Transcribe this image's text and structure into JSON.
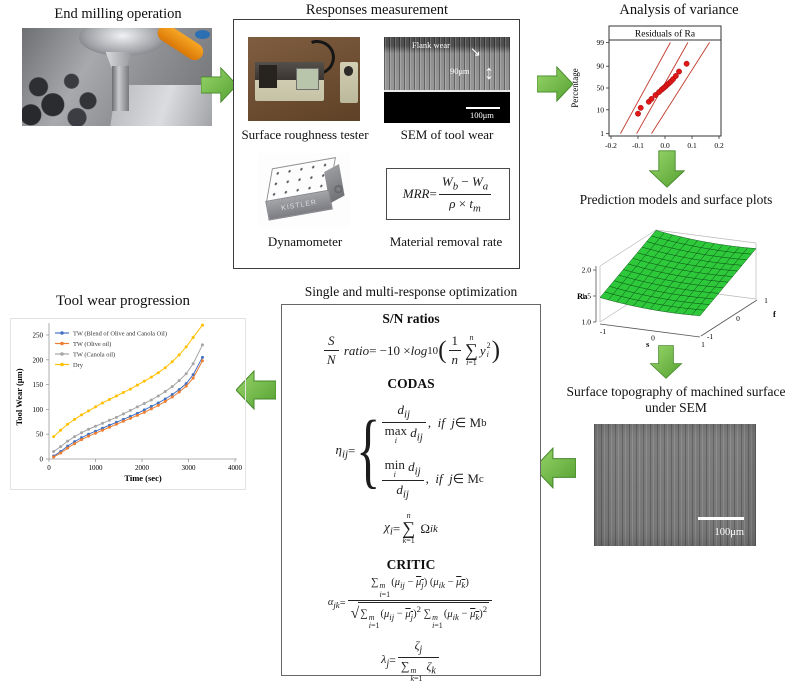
{
  "sections": {
    "end_milling": {
      "title": "End milling operation"
    },
    "responses": {
      "title": "Responses measurement",
      "tester_label": "Surface roughness tester",
      "sem_label": "SEM of tool wear",
      "dyna_label": "Dynamometer",
      "mrr_label": "Material removal rate",
      "dyna_device_text": "KISTLER",
      "sem_flank": "Flank wear",
      "sem_arrow": "↘",
      "sem_measure": "90μm",
      "sem_updown": "↕",
      "sem_scale": "100μm",
      "mrr_formula": "<i>MRR</i> = <span class='fr'><span class='n'><i>W<sub>b</sub></i> − <i>W<sub>a</sub></i></span><span class='d'><i>ρ</i> × <i>t<sub>m</sub></i></span></span>"
    },
    "anova": {
      "title": "Analysis of variance"
    },
    "prediction": {
      "title": "Prediction models and surface plots"
    },
    "topography": {
      "title_line1": "Surface topography of machined surface",
      "title_line2": "under SEM",
      "scale": "100μm"
    },
    "optimization": {
      "title": "Single and multi-response optimization",
      "sn_heading": "S/N ratios",
      "codas_heading": "CODAS",
      "critic_heading": "CRITIC",
      "formulas": {
        "sn": "<span class='fr'><span class='n'><i>S</i></span><span class='d'><i>N</i></span></span><i>&nbsp;ratio</i> = −10 × <i>log</i><sub>10</sub><span class='bigp'>(</span><span class='fr'><span class='n'>1</span><span class='d'><i>n</i></span></span><span class='sum'><span class='lim'><i>n</i></span><span class='sig'>∑</span><span class='lim'><i>i</i>=1</span></span><i>y</i><span class='stk'><span>2</span><span><i>i</i></span></span><span class='bigp'>)</span>",
        "eta": "<i>η<sub>ij</sub></i> = <span class='brace'>{</span><span class='cases'><span class='crow'><span class='fr'><span class='n'><i>d<sub>ij</sub></i></span><span class='d'><span class='stackop'><span>max</span><span class='under'><i>i</i></span></span>&nbsp;<i>d<sub>ij</sub></i></span></span>,&nbsp;&nbsp;<i>if&nbsp;&nbsp;j</i> ∈ M<sub>b</sub></span><span class='crow'><span class='fr'><span class='n'><span class='stackop'><span>min</span><span class='under'><i>i</i></span></span>&nbsp;<i>d<sub>ij</sub></i></span><span class='d'><i>d<sub>ij</sub></i></span></span>,&nbsp;&nbsp;<i>if&nbsp;&nbsp;j</i> ∈ M<sub>c</sub></span></span>",
        "chi": "<i>χ<sub>i</sub></i> = <span class='sum'><span class='lim'><i>n</i></span><span class='sig'>∑</span><span class='lim'><i>k</i>=1</span></span>&nbsp;Ω<sub><i>ik</i></sub>",
        "alpha": "<i>α<sub>jk</sub></i> = <span class='fr'><span class='n'>∑<span class='stk'><span><i>m</i></span><span><i>i</i>=1</span></span>(<i>μ<sub>ij</sub></i> − <span class='ov'><i>μ<sub>j</sub></i></span>)&nbsp;(<i>μ<sub>ik</sub></i> − <span class='ov'><i>μ<sub>k</sub></i></span>)</span><span class='d'><span class='rad'>√</span><span class='radb'>∑<span class='stk'><span><i>m</i></span><span><i>i</i>=1</span></span>(<i>μ<sub>ij</sub></i> − <span class='ov'><i>μ<sub>j</sub></i></span>)<sup>2</sup> ∑<span class='stk'><span><i>m</i></span><span><i>i</i>=1</span></span>(<i>μ<sub>ik</sub></i> − <span class='ov'><i>μ<sub>k</sub></i></span>)<sup>2</sup></span></span></span>",
        "lambda": "<i>λ<sub>j</sub></i> = <span class='fr'><span class='n'><i>ζ<sub>j</sub></i></span><span class='d'>∑<span class='stk'><span><i>m</i></span><span><i>k</i>=1</span></span>&nbsp;<i>ζ<sub>k</sub></i></span></span>"
      }
    },
    "toolwear": {
      "title": "Tool wear progression"
    }
  },
  "colors": {
    "arrow_light": "#9ad66b",
    "arrow_dark": "#53a030",
    "arrow_stroke": "#45882a",
    "anova_line": "#c0392b",
    "anova_point": "#e01818",
    "surface_fill": "#2ec93a",
    "surface_mesh": "#0a4d14"
  },
  "chart_data": [
    {
      "id": "anova",
      "type": "scatter",
      "title": "Residuals of Ra",
      "ylabel": "Percentage",
      "yscale": "probit",
      "xlim": [
        -0.2,
        0.2
      ],
      "xtick_labels": [
        "-0.2",
        "-0.1",
        "0.0",
        "0.1",
        "0.2"
      ],
      "yticks": [
        1,
        10,
        50,
        90,
        99
      ],
      "points": [
        [
          -0.1,
          7
        ],
        [
          -0.09,
          12
        ],
        [
          -0.06,
          20
        ],
        [
          -0.05,
          25
        ],
        [
          -0.035,
          33
        ],
        [
          -0.022,
          40
        ],
        [
          -0.012,
          46
        ],
        [
          -0.005,
          50
        ],
        [
          0.002,
          54
        ],
        [
          0.008,
          58
        ],
        [
          0.015,
          62
        ],
        [
          0.022,
          66
        ],
        [
          0.03,
          71
        ],
        [
          0.04,
          77
        ],
        [
          0.052,
          84
        ],
        [
          0.08,
          92
        ]
      ],
      "lines": [
        {
          "x": [
            -0.165,
            0.02
          ],
          "p": [
            1,
            99
          ]
        },
        {
          "x": [
            -0.105,
            0.085
          ],
          "p": [
            1,
            99
          ]
        },
        {
          "x": [
            -0.05,
            0.165
          ],
          "p": [
            1,
            99
          ]
        }
      ]
    },
    {
      "id": "ra_surface",
      "type": "surface",
      "zlabel": "Ra",
      "xlabel": "s",
      "ylabel": "f",
      "zticks": [
        "1.0",
        "1.5",
        "2.0"
      ],
      "sticks": [
        "-1",
        "0",
        "1"
      ],
      "fticks": [
        "-1",
        "0",
        "1"
      ],
      "zlim": [
        1.0,
        2.0
      ],
      "grid_n": 12,
      "z_model": {
        "base": 1.67,
        "f_lin": 0.3,
        "s_lin": -0.05,
        "s_quad": 0.05
      }
    },
    {
      "id": "tool_wear",
      "type": "line",
      "title": "Tool wear progression",
      "xlabel": "Time (sec)",
      "ylabel": "Tool Wear (μm)",
      "xlim": [
        0,
        4000
      ],
      "ylim": [
        0,
        250
      ],
      "xticks": [
        0,
        1000,
        2000,
        3000,
        4000
      ],
      "yticks": [
        0,
        50,
        100,
        150,
        200,
        250
      ],
      "x": [
        100,
        250,
        400,
        550,
        700,
        850,
        1000,
        1150,
        1300,
        1450,
        1600,
        1750,
        1900,
        2050,
        2200,
        2350,
        2500,
        2650,
        2800,
        2950,
        3100,
        3300
      ],
      "series": [
        {
          "name": "TW (Blend of Olive and Canola Oil)",
          "color": "#4472c4",
          "values": [
            6,
            15,
            26,
            35,
            43,
            50,
            56,
            62,
            68,
            74,
            80,
            86,
            92,
            99,
            106,
            113,
            121,
            130,
            140,
            152,
            170,
            205
          ]
        },
        {
          "name": "TW (Olive oil)",
          "color": "#ed7d31",
          "values": [
            4,
            12,
            22,
            31,
            39,
            46,
            52,
            58,
            64,
            70,
            76,
            82,
            88,
            94,
            101,
            108,
            116,
            125,
            135,
            147,
            163,
            198
          ]
        },
        {
          "name": "TW (Canola oil)",
          "color": "#a5a5a5",
          "values": [
            15,
            25,
            36,
            45,
            53,
            60,
            66,
            72,
            78,
            84,
            91,
            98,
            105,
            112,
            119,
            127,
            136,
            146,
            158,
            172,
            192,
            230
          ]
        },
        {
          "name": "Dry",
          "color": "#ffc000",
          "values": [
            45,
            58,
            70,
            80,
            89,
            97,
            105,
            113,
            120,
            127,
            134,
            141,
            149,
            157,
            165,
            174,
            184,
            196,
            210,
            226,
            245,
            270
          ]
        }
      ]
    }
  ]
}
